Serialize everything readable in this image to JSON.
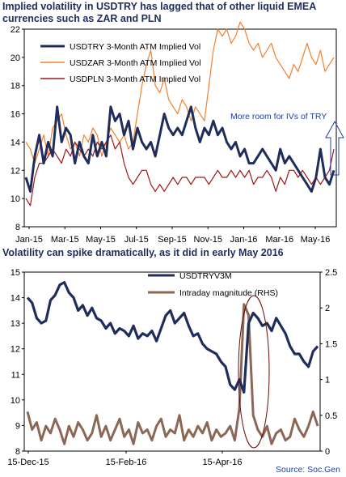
{
  "chart_data": [
    {
      "type": "line",
      "title": "Implied volatility in USDTRY has lagged that of other liquid EMEA currencies such as ZAR and PLN",
      "x_ticks": [
        "Jan-15",
        "Mar-15",
        "May-15",
        "Jul-15",
        "Sep-15",
        "Nov-15",
        "Jan-16",
        "Mar-16",
        "May-16"
      ],
      "ylim": [
        8,
        22
      ],
      "y_ticks": [
        8,
        10,
        12,
        14,
        16,
        18,
        20,
        22
      ],
      "legend_position": "top-left",
      "annotation": "More room for IVs of TRY",
      "series": [
        {
          "name": "USDTRY 3-Month ATM Implied Vol",
          "color": "#1f2d5c",
          "values": [
            11.5,
            10.5,
            13.0,
            14.5,
            12.5,
            14.0,
            13.0,
            16.5,
            14.0,
            15.0,
            14.5,
            12.5,
            14.0,
            13.0,
            12.5,
            14.5,
            13.0,
            14.0,
            13.0,
            16.5,
            15.5,
            16.0,
            14.5,
            15.5,
            13.5,
            15.0,
            14.0,
            13.5,
            14.0,
            13.0,
            14.5,
            16.0,
            15.0,
            14.5,
            15.0,
            14.5,
            15.5,
            16.5,
            15.0,
            14.0,
            15.0,
            14.5,
            15.5,
            14.5,
            15.0,
            14.0,
            13.5,
            14.0,
            13.0,
            13.5,
            12.5,
            12.5,
            13.0,
            13.5,
            13.0,
            12.5,
            12.0,
            13.5,
            12.5,
            13.0,
            12.5,
            12.0,
            11.5,
            11.0,
            10.5,
            11.5,
            13.5,
            11.5,
            11.0,
            12.0
          ]
        },
        {
          "name": "USDZAR 3-Month ATM Implied Vol",
          "color": "#f08030",
          "values": [
            14.0,
            13.5,
            12.5,
            13.5,
            14.5,
            13.0,
            15.0,
            15.5,
            16.0,
            14.5,
            13.5,
            14.0,
            13.0,
            14.5,
            14.0,
            15.0,
            14.5,
            13.0,
            14.0,
            15.0,
            14.5,
            14.0,
            14.5,
            13.5,
            14.0,
            16.0,
            18.0,
            19.5,
            20.5,
            18.0,
            17.5,
            18.5,
            17.0,
            16.5,
            16.0,
            17.0,
            16.5,
            15.5,
            16.5,
            16.0,
            15.5,
            18.0,
            20.5,
            22.0,
            21.5,
            22.0,
            21.0,
            21.5,
            22.5,
            22.0,
            21.0,
            20.5,
            21.0,
            20.0,
            20.5,
            21.0,
            20.0,
            19.5,
            19.0,
            18.5,
            19.5,
            19.0,
            20.0,
            21.0,
            20.0,
            19.5,
            20.5,
            19.0,
            19.5,
            20.0
          ]
        },
        {
          "name": "USDPLN 3-Month ATM Implied Vol",
          "color": "#a01818",
          "values": [
            10.0,
            9.5,
            11.5,
            12.5,
            12.5,
            13.0,
            13.5,
            13.0,
            12.5,
            13.5,
            13.0,
            14.0,
            13.5,
            13.0,
            13.5,
            13.0,
            14.0,
            13.5,
            14.0,
            14.5,
            13.5,
            14.0,
            12.5,
            11.5,
            11.0,
            11.5,
            12.0,
            12.0,
            11.0,
            10.5,
            11.0,
            10.5,
            11.0,
            11.5,
            11.0,
            11.5,
            11.5,
            11.0,
            11.5,
            11.5,
            11.5,
            11.0,
            11.5,
            12.0,
            11.5,
            11.5,
            12.0,
            11.5,
            12.0,
            11.5,
            12.0,
            11.0,
            11.5,
            11.5,
            12.0,
            11.5,
            10.5,
            11.5,
            11.0,
            12.0,
            12.0,
            11.5,
            12.0,
            11.5,
            11.0,
            11.5,
            11.0,
            11.5,
            12.0,
            13.5
          ]
        }
      ]
    },
    {
      "type": "line",
      "title": "Volatility can spike dramatically, as it did in early May 2016",
      "x_ticks": [
        "15-Dec-15",
        "15-Feb-16",
        "15-Apr-16"
      ],
      "ylim": [
        8,
        15
      ],
      "y_ticks": [
        8,
        9,
        10,
        11,
        12,
        13,
        14,
        15
      ],
      "y2lim": [
        0,
        2.5
      ],
      "y2_ticks": [
        "0",
        "0.5",
        "1",
        "1.5",
        "2",
        "2.5"
      ],
      "legend_position": "top-center",
      "source": "Source: Soc.Gen",
      "series": [
        {
          "name": "USDTRYV3M",
          "color": "#1f2d5c",
          "axis": "left",
          "values": [
            14.0,
            13.8,
            13.2,
            13.0,
            13.1,
            13.9,
            14.1,
            14.5,
            14.6,
            14.2,
            14.0,
            13.5,
            13.7,
            13.3,
            13.6,
            13.2,
            13.1,
            12.8,
            13.0,
            12.6,
            12.8,
            12.7,
            12.5,
            12.9,
            12.4,
            12.6,
            12.5,
            12.7,
            12.3,
            12.8,
            13.3,
            13.5,
            13.0,
            13.2,
            13.4,
            12.9,
            12.5,
            12.6,
            12.2,
            12.0,
            11.9,
            11.8,
            11.5,
            11.3,
            10.6,
            10.4,
            10.8,
            10.3,
            13.0,
            13.4,
            13.2,
            12.9,
            13.0,
            12.7,
            13.2,
            12.9,
            12.6,
            12.1,
            11.8,
            11.8,
            11.5,
            11.3,
            11.9,
            12.1
          ]
        },
        {
          "name": "Intraday magnitude (RHS)",
          "color": "#8b6755",
          "axis": "right",
          "values": [
            0.55,
            0.3,
            0.4,
            0.15,
            0.35,
            0.25,
            0.45,
            0.3,
            0.1,
            0.35,
            0.2,
            0.4,
            0.3,
            0.15,
            0.25,
            0.5,
            0.2,
            0.35,
            0.15,
            0.3,
            0.45,
            0.2,
            0.3,
            0.1,
            0.4,
            0.25,
            0.3,
            0.15,
            0.35,
            0.45,
            0.2,
            0.3,
            0.25,
            0.5,
            0.15,
            0.3,
            0.2,
            0.35,
            0.25,
            0.4,
            0.15,
            0.3,
            0.2,
            0.25,
            0.35,
            0.15,
            0.6,
            2.05,
            1.9,
            0.5,
            0.3,
            0.2,
            0.35,
            0.1,
            0.25,
            0.3,
            0.15,
            0.2,
            0.45,
            0.3,
            0.2,
            0.35,
            0.55,
            0.35
          ]
        }
      ]
    }
  ]
}
